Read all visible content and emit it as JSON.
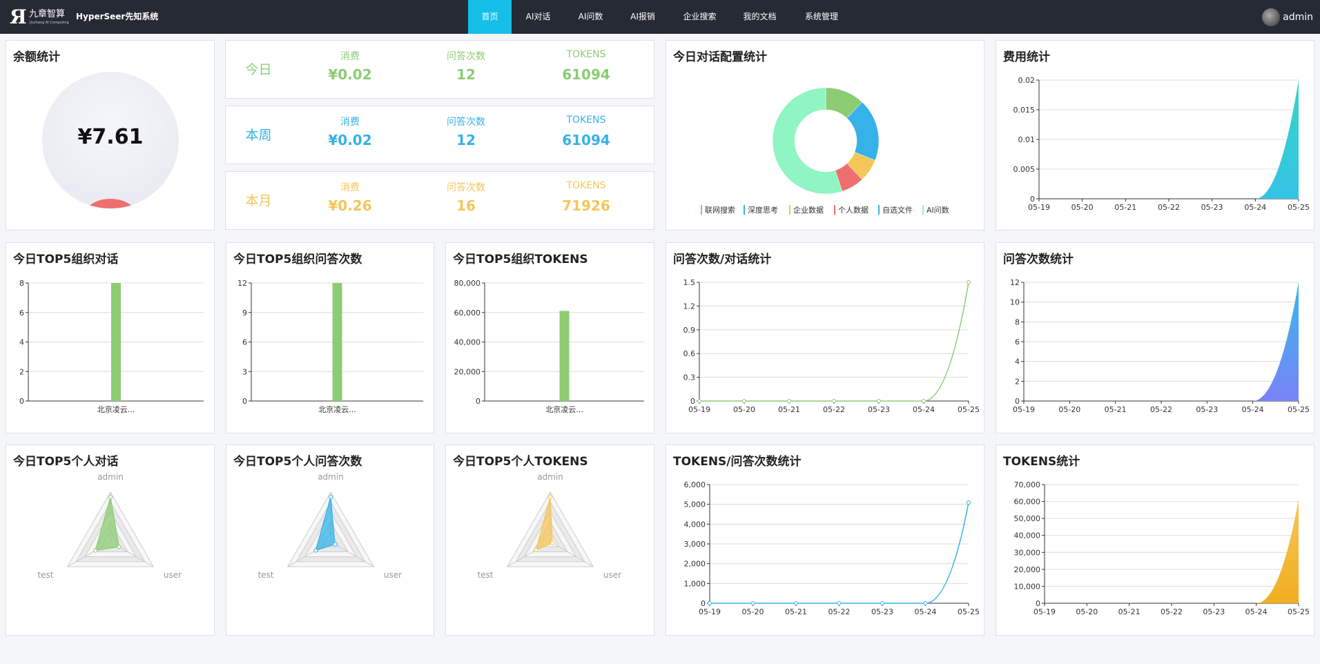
{
  "app": {
    "logo_text": "九章智算",
    "logo_sub": "Jiuzhang AI Computing",
    "system_name": "HyperSeer先知系统"
  },
  "nav": [
    {
      "label": "首页",
      "active": true
    },
    {
      "label": "AI对话"
    },
    {
      "label": "AI问数"
    },
    {
      "label": "AI报销"
    },
    {
      "label": "企业搜索"
    },
    {
      "label": "我的文档"
    },
    {
      "label": "系统管理"
    }
  ],
  "user": {
    "name": "admin"
  },
  "colors": {
    "green": "#8ccc73",
    "blue": "#36b2e8",
    "yellow": "#f5c658",
    "red": "#ef6f6f",
    "navy": "#262a35",
    "accent": "#16bfe8"
  },
  "balance": {
    "title": "余额统计",
    "value": "¥7.61"
  },
  "stats": [
    {
      "period": "今日",
      "color": "#8ccc73",
      "items": [
        {
          "label": "消费",
          "value": "¥0.02"
        },
        {
          "label": "问答次数",
          "value": "12"
        },
        {
          "label": "TOKENS",
          "value": "61094"
        }
      ]
    },
    {
      "period": "本周",
      "color": "#36b2e8",
      "items": [
        {
          "label": "消费",
          "value": "¥0.02"
        },
        {
          "label": "问答次数",
          "value": "12"
        },
        {
          "label": "TOKENS",
          "value": "61094"
        }
      ]
    },
    {
      "period": "本月",
      "color": "#f5c658",
      "items": [
        {
          "label": "消费",
          "value": "¥0.26"
        },
        {
          "label": "问答次数",
          "value": "16"
        },
        {
          "label": "TOKENS",
          "value": "71926"
        }
      ]
    }
  ],
  "chart_data": [
    {
      "id": "donut",
      "type": "pie",
      "title": "今日对话配置统计",
      "legend_position": "bottom",
      "categories": [
        "联网搜索",
        "深度思考",
        "企业数据",
        "个人数据",
        "自选文件",
        "AI问数"
      ],
      "values": [
        12,
        19,
        7,
        7,
        0,
        55
      ],
      "colors": [
        "#8ccc73",
        "#36b2e8",
        "#f5c658",
        "#ef6f6f",
        "#36b2e8",
        "#8ff5c2"
      ]
    },
    {
      "id": "cost",
      "type": "area",
      "title": "费用统计",
      "categories": [
        "05-19",
        "05-20",
        "05-21",
        "05-22",
        "05-23",
        "05-24",
        "05-25"
      ],
      "values": [
        0,
        0,
        0,
        0,
        0,
        0,
        0.02
      ],
      "yticks": [
        "0",
        "0.005",
        "0.01",
        "0.015",
        "0.02"
      ],
      "ylim": [
        0,
        0.02
      ],
      "grid": true
    },
    {
      "id": "org_dialog",
      "type": "bar",
      "title": "今日TOP5组织对话",
      "categories": [
        "北京凌云..."
      ],
      "values": [
        8
      ],
      "yticks": [
        "0",
        "2",
        "4",
        "6",
        "8"
      ],
      "ylim": [
        0,
        8
      ],
      "grid": true
    },
    {
      "id": "org_qa",
      "type": "bar",
      "title": "今日TOP5组织问答次数",
      "categories": [
        "北京凌云..."
      ],
      "values": [
        12
      ],
      "yticks": [
        "0",
        "3",
        "6",
        "9",
        "12"
      ],
      "ylim": [
        0,
        12
      ],
      "grid": true
    },
    {
      "id": "org_tokens",
      "type": "bar",
      "title": "今日TOP5组织TOKENS",
      "categories": [
        "北京凌云..."
      ],
      "values": [
        61094
      ],
      "yticks": [
        "0",
        "20,000",
        "40,000",
        "60,000",
        "80,000"
      ],
      "ylim": [
        0,
        80000
      ],
      "grid": true
    },
    {
      "id": "qa_ratio",
      "type": "line",
      "title": "问答次数/对话统计",
      "categories": [
        "05-19",
        "05-20",
        "05-21",
        "05-22",
        "05-23",
        "05-24",
        "05-25"
      ],
      "values": [
        0,
        0,
        0,
        0,
        0,
        0,
        1.5
      ],
      "yticks": [
        "0",
        "0.3",
        "0.6",
        "0.9",
        "1.2",
        "1.5"
      ],
      "ylim": [
        0,
        1.5
      ],
      "grid": true
    },
    {
      "id": "qa_count",
      "type": "area",
      "title": "问答次数统计",
      "categories": [
        "05-19",
        "05-20",
        "05-21",
        "05-22",
        "05-23",
        "05-24",
        "05-25"
      ],
      "values": [
        0,
        0,
        0,
        0,
        0,
        0,
        12
      ],
      "yticks": [
        "0",
        "2",
        "4",
        "6",
        "8",
        "10",
        "12"
      ],
      "ylim": [
        0,
        12
      ],
      "grid": true
    },
    {
      "id": "p_dialog",
      "type": "radar",
      "title": "今日TOP5个人对话",
      "categories": [
        "admin",
        "user",
        "test"
      ],
      "values": [
        0.9,
        0.2,
        0.35
      ]
    },
    {
      "id": "p_qa",
      "type": "radar",
      "title": "今日TOP5个人问答次数",
      "categories": [
        "admin",
        "user",
        "test"
      ],
      "values": [
        0.9,
        0.1,
        0.35
      ]
    },
    {
      "id": "p_tokens",
      "type": "radar",
      "title": "今日TOP5个人TOKENS",
      "categories": [
        "admin",
        "user",
        "test"
      ],
      "values": [
        0.9,
        0.05,
        0.33
      ]
    },
    {
      "id": "tok_ratio",
      "type": "line",
      "title": "TOKENS/问答次数统计",
      "categories": [
        "05-19",
        "05-20",
        "05-21",
        "05-22",
        "05-23",
        "05-24",
        "05-25"
      ],
      "values": [
        0,
        0,
        0,
        0,
        0,
        0,
        5091
      ],
      "yticks": [
        "0",
        "1,000",
        "2,000",
        "3,000",
        "4,000",
        "5,000",
        "6,000"
      ],
      "ylim": [
        0,
        6000
      ],
      "grid": true
    },
    {
      "id": "tok_count",
      "type": "area",
      "title": "TOKENS统计",
      "categories": [
        "05-19",
        "05-20",
        "05-21",
        "05-22",
        "05-23",
        "05-24",
        "05-25"
      ],
      "values": [
        0,
        0,
        0,
        0,
        0,
        0,
        61094
      ],
      "yticks": [
        "0",
        "10,000",
        "20,000",
        "30,000",
        "40,000",
        "50,000",
        "60,000",
        "70,000"
      ],
      "ylim": [
        0,
        70000
      ],
      "grid": true
    }
  ]
}
